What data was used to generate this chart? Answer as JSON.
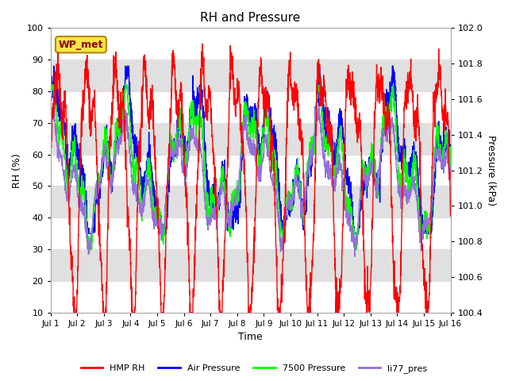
{
  "title": "RH and Pressure",
  "xlabel": "Time",
  "ylabel_left": "RH (%)",
  "ylabel_right": "Pressure (kPa)",
  "ylim_left": [
    10,
    100
  ],
  "ylim_right": [
    100.4,
    102.0
  ],
  "xtick_labels": [
    "Jul 1",
    "Jul 2",
    "Jul 3",
    "Jul 4",
    "Jul 5",
    "Jul 6",
    "Jul 7",
    "Jul 8",
    "Jul 9",
    "Jul 10",
    "Jul 11",
    "Jul 12",
    "Jul 13",
    "Jul 14",
    "Jul 15",
    "Jul 16"
  ],
  "yticks_left": [
    10,
    20,
    30,
    40,
    50,
    60,
    70,
    80,
    90,
    100
  ],
  "yticks_right": [
    100.4,
    100.6,
    100.8,
    101.0,
    101.2,
    101.4,
    101.6,
    101.8,
    102.0
  ],
  "legend_entries": [
    "HMP RH",
    "Air Pressure",
    "7500 Pressure",
    "li77_pres"
  ],
  "line_colors": [
    "red",
    "blue",
    "lime",
    "mediumpurple"
  ],
  "annotation_text": "WP_met",
  "background_band_color": "#e0e0e0",
  "figsize": [
    6.4,
    4.8
  ],
  "dpi": 100
}
